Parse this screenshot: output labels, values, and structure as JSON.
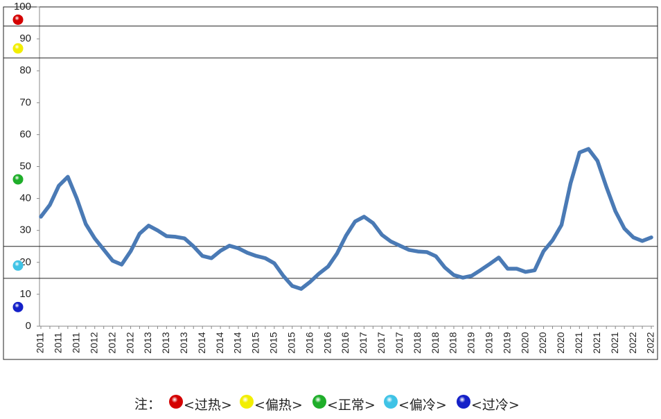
{
  "chart_data": {
    "type": "line",
    "categories": [
      "2011",
      null,
      "2011",
      null,
      "2011",
      null,
      "2012",
      null,
      "2012",
      null,
      "2012",
      null,
      "2013",
      null,
      "2013",
      null,
      "2013",
      null,
      "2014",
      null,
      "2014",
      null,
      "2014",
      null,
      "2015",
      null,
      "2015",
      null,
      "2015",
      null,
      "2016",
      null,
      "2016",
      null,
      "2016",
      null,
      "2017",
      null,
      "2017",
      null,
      "2017",
      null,
      "2018",
      null,
      "2018",
      null,
      "2018",
      null,
      "2019",
      null,
      "2019",
      null,
      "2019",
      null,
      "2020",
      null,
      "2020",
      null,
      "2020",
      null,
      "2021",
      null,
      "2021",
      null,
      "2021",
      null,
      "2022",
      null,
      "2022"
    ],
    "series": [
      {
        "color": "#4a7ab5",
        "values": [
          34.3,
          38,
          44,
          46.8,
          40,
          32,
          27.5,
          24,
          20.5,
          19.3,
          23.5,
          29,
          31.5,
          30,
          28.2,
          28,
          27.5,
          25,
          22,
          21.3,
          23.6,
          25.2,
          24.4,
          23,
          22,
          21.3,
          19.7,
          15.8,
          12.6,
          11.7,
          13.9,
          16.5,
          18.7,
          22.8,
          28.4,
          32.8,
          34.3,
          32.3,
          28.6,
          26.5,
          25.2,
          23.9,
          23.4,
          23.2,
          21.9,
          18.4,
          16,
          15.2,
          15.8,
          17.6,
          19.5,
          21.5,
          18,
          18,
          17,
          17.5,
          23.5,
          26.9,
          31.7,
          44.7,
          54.4,
          55.5,
          51.8,
          43.6,
          36,
          30.6,
          27.8,
          26.7,
          27.8
        ]
      }
    ],
    "ylim": [
      0,
      100
    ],
    "yticks": [
      0,
      10,
      20,
      30,
      40,
      50,
      60,
      70,
      80,
      90,
      100
    ],
    "thresholds": [
      94,
      84,
      25,
      15
    ],
    "legend_note": "注：",
    "zones": [
      {
        "name": "<过热>",
        "color": "#d40000",
        "marker": 96
      },
      {
        "name": "<偏热>",
        "color": "#f2ee00",
        "marker": 87
      },
      {
        "name": "<正常>",
        "color": "#1fae2a",
        "marker": 46
      },
      {
        "name": "<偏冷>",
        "color": "#3fc3e6",
        "marker": 19
      },
      {
        "name": "<过冷>",
        "color": "#1420c8",
        "marker": 6
      }
    ]
  }
}
